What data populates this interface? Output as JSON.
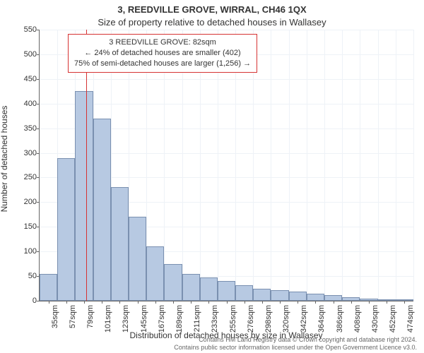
{
  "title_main": "3, REEDVILLE GROVE, WIRRAL, CH46 1QX",
  "title_sub": "Size of property relative to detached houses in Wallasey",
  "y_axis_label": "Number of detached houses",
  "x_axis_label": "Distribution of detached houses by size in Wallasey",
  "annotation": {
    "line1": "3 REEDVILLE GROVE: 82sqm",
    "line2": "← 24% of detached houses are smaller (402)",
    "line3": "75% of semi-detached houses are larger (1,256) →"
  },
  "marker_x": 82,
  "footnote_line1": "Contains HM Land Registry data © Crown copyright and database right 2024.",
  "footnote_line2": "Contains public sector information licensed under the Open Government Licence v3.0.",
  "chart": {
    "type": "histogram",
    "bar_fill": "#b7c9e2",
    "bar_border": "#7a90b0",
    "marker_color": "#d63333",
    "annot_border": "#d63333",
    "grid_color": "#eef2f7",
    "background": "#ffffff",
    "ylim": [
      0,
      550
    ],
    "yticks": [
      0,
      50,
      100,
      150,
      200,
      250,
      300,
      350,
      400,
      450,
      500,
      550
    ],
    "x_bin_width": 22,
    "x_start": 24,
    "xticks": [
      "35sqm",
      "57sqm",
      "79sqm",
      "101sqm",
      "123sqm",
      "145sqm",
      "167sqm",
      "189sqm",
      "211sqm",
      "233sqm",
      "255sqm",
      "276sqm",
      "298sqm",
      "320sqm",
      "342sqm",
      "364sqm",
      "386sqm",
      "408sqm",
      "430sqm",
      "452sqm",
      "474sqm"
    ],
    "values": [
      55,
      290,
      425,
      370,
      230,
      170,
      110,
      75,
      55,
      48,
      40,
      32,
      25,
      22,
      18,
      15,
      12,
      7,
      5,
      3,
      2
    ],
    "title_fontsize": 13,
    "label_fontsize": 12,
    "tick_fontsize": 11,
    "annot_fontsize": 11,
    "footnote_fontsize": 9
  }
}
